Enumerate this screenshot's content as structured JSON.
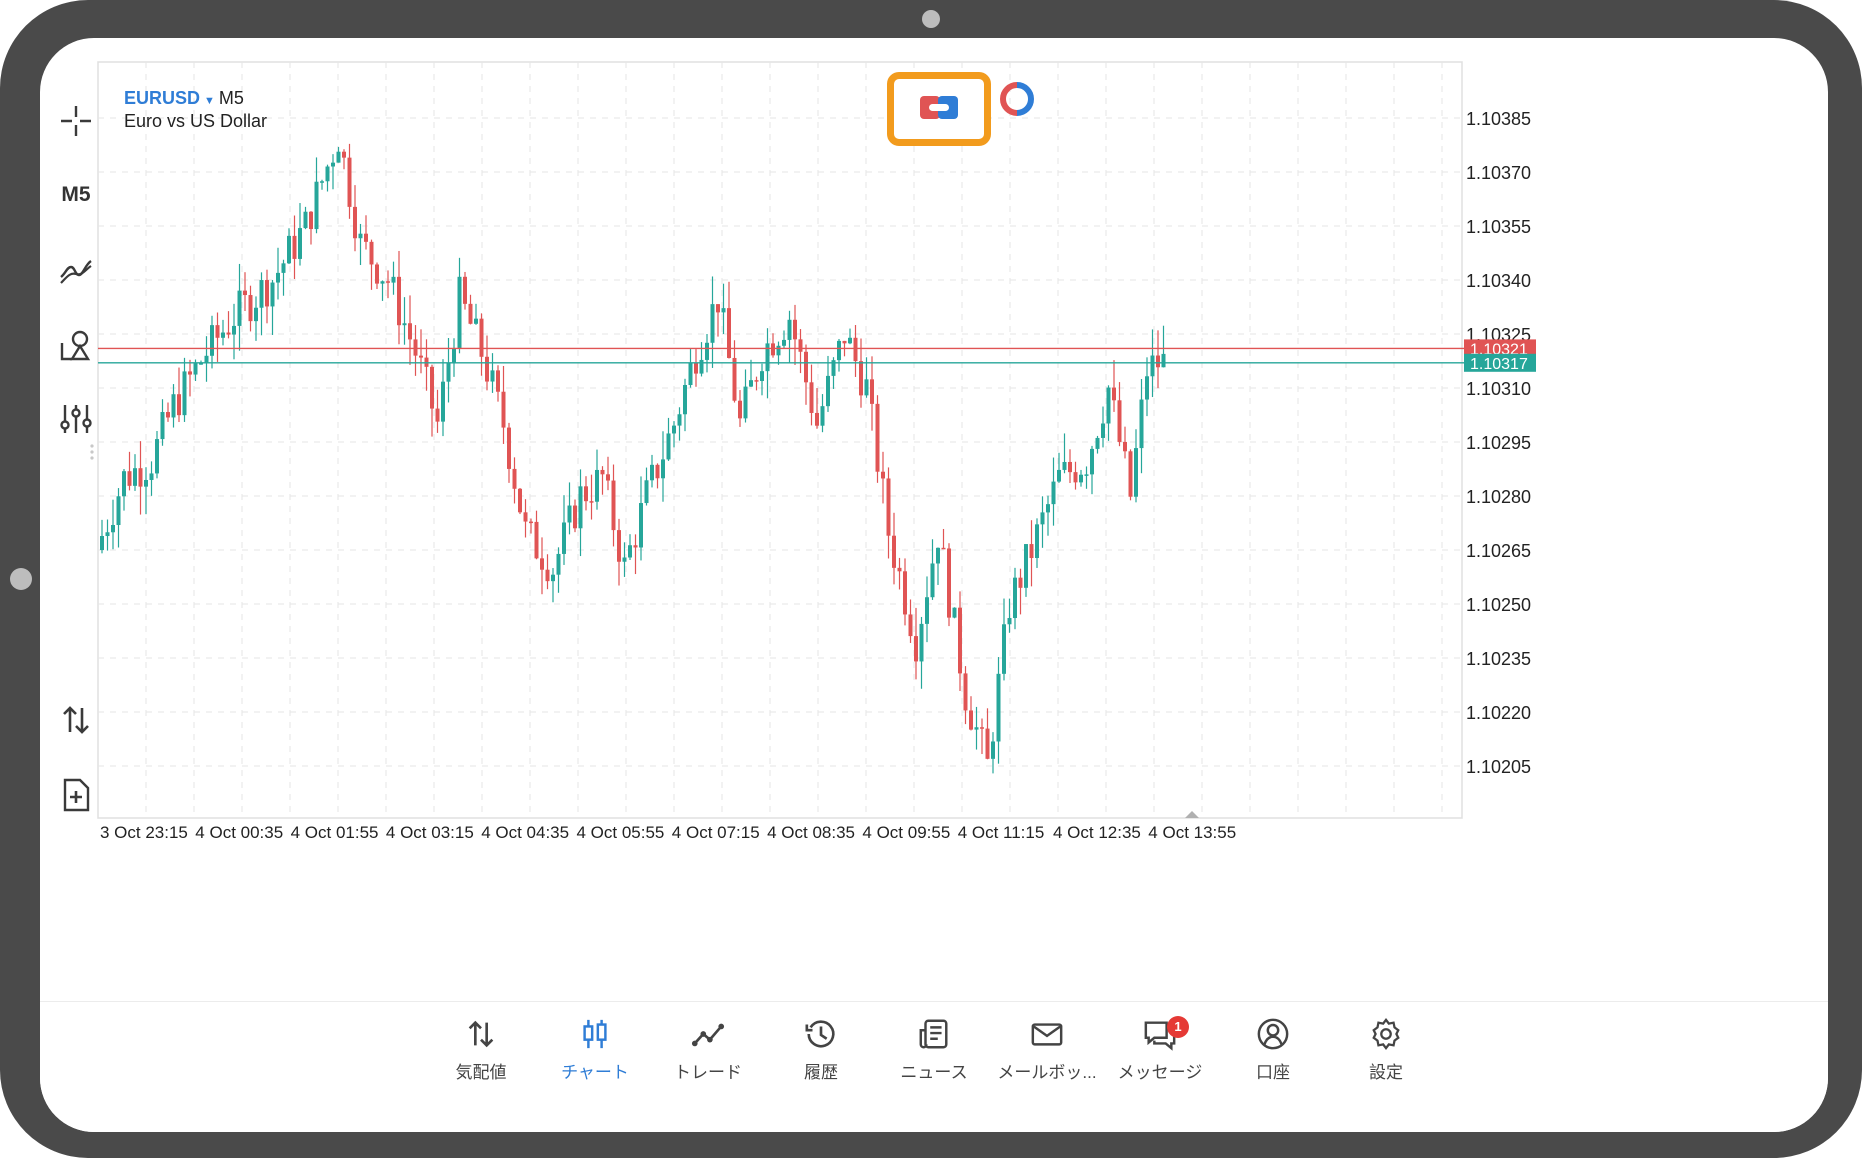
{
  "symbol": {
    "name": "EURUSD",
    "timeframe": "M5",
    "description": "Euro vs US Dollar"
  },
  "left_toolbar": {
    "items": [
      {
        "icon": "crosshair-icon"
      },
      {
        "label": "M5"
      },
      {
        "icon": "indicators-icon"
      },
      {
        "icon": "objects-icon"
      },
      {
        "icon": "chart-settings-icon"
      },
      {
        "icon": "trade-arrows-icon"
      },
      {
        "icon": "new-order-icon"
      }
    ]
  },
  "top_controls": [
    {
      "icon": "one-click-trading-icon",
      "highlighted": true,
      "highlight_color": "#f29b1d"
    },
    {
      "icon": "signal-status-icon"
    }
  ],
  "colors": {
    "bull": "#26a69a",
    "bear": "#e05454",
    "bid_line": "#e05454",
    "ask_line": "#26a69a",
    "grid": "#e6e6e6",
    "accent": "#2f7dd6"
  },
  "chart_data": {
    "type": "candlestick",
    "y_ticks": [
      "1.10385",
      "1.10370",
      "1.10355",
      "1.10340",
      "1.10325",
      "1.10310",
      "1.10295",
      "1.10280",
      "1.10265",
      "1.10250",
      "1.10235",
      "1.10220",
      "1.10205"
    ],
    "ylim": [
      1.10195,
      1.10395
    ],
    "x_labels": [
      "3 Oct 23:15",
      "4 Oct 00:35",
      "4 Oct 01:55",
      "4 Oct 03:15",
      "4 Oct 04:35",
      "4 Oct 05:55",
      "4 Oct 07:15",
      "4 Oct 08:35",
      "4 Oct 09:55",
      "4 Oct 11:15",
      "4 Oct 12:35",
      "4 Oct 13:55"
    ],
    "price_lines": [
      {
        "name": "bid",
        "value": 1.10321,
        "label": "1.10321"
      },
      {
        "name": "ask",
        "value": 1.10317,
        "label": "1.10317"
      }
    ],
    "grid": true,
    "trend_anchors": [
      [
        0,
        1.10265
      ],
      [
        5,
        1.10285
      ],
      [
        10,
        1.1029
      ],
      [
        14,
        1.10305
      ],
      [
        20,
        1.1032
      ],
      [
        25,
        1.1033
      ],
      [
        32,
        1.1034
      ],
      [
        38,
        1.10355
      ],
      [
        44,
        1.1038
      ],
      [
        48,
        1.1035
      ],
      [
        53,
        1.1034
      ],
      [
        58,
        1.1032
      ],
      [
        62,
        1.103
      ],
      [
        66,
        1.10335
      ],
      [
        70,
        1.1032
      ],
      [
        74,
        1.103
      ],
      [
        78,
        1.1027
      ],
      [
        83,
        1.1026
      ],
      [
        88,
        1.1028
      ],
      [
        92,
        1.10285
      ],
      [
        96,
        1.1026
      ],
      [
        100,
        1.1028
      ],
      [
        105,
        1.103
      ],
      [
        109,
        1.1032
      ],
      [
        113,
        1.10335
      ],
      [
        117,
        1.103
      ],
      [
        121,
        1.1032
      ],
      [
        126,
        1.1033
      ],
      [
        131,
        1.103
      ],
      [
        136,
        1.10325
      ],
      [
        140,
        1.1031
      ],
      [
        144,
        1.1027
      ],
      [
        149,
        1.1024
      ],
      [
        153,
        1.1027
      ],
      [
        158,
        1.10225
      ],
      [
        162,
        1.10205
      ],
      [
        166,
        1.1025
      ],
      [
        170,
        1.10265
      ],
      [
        175,
        1.10285
      ],
      [
        180,
        1.1029
      ],
      [
        184,
        1.1031
      ],
      [
        188,
        1.1028
      ],
      [
        191,
        1.10315
      ],
      [
        193,
        1.10317
      ]
    ],
    "candle_count": 194
  },
  "bottom_nav": [
    {
      "label": "気配値",
      "icon": "quotes-icon",
      "active": false
    },
    {
      "label": "チャート",
      "icon": "chart-icon",
      "active": true
    },
    {
      "label": "トレード",
      "icon": "trade-icon",
      "active": false
    },
    {
      "label": "履歴",
      "icon": "history-icon",
      "active": false
    },
    {
      "label": "ニュース",
      "icon": "news-icon",
      "active": false
    },
    {
      "label": "メールボッ...",
      "icon": "mailbox-icon",
      "active": false
    },
    {
      "label": "メッセージ",
      "icon": "messages-icon",
      "active": false,
      "badge": "1"
    },
    {
      "label": "口座",
      "icon": "account-icon",
      "active": false
    },
    {
      "label": "設定",
      "icon": "settings-icon",
      "active": false
    }
  ]
}
